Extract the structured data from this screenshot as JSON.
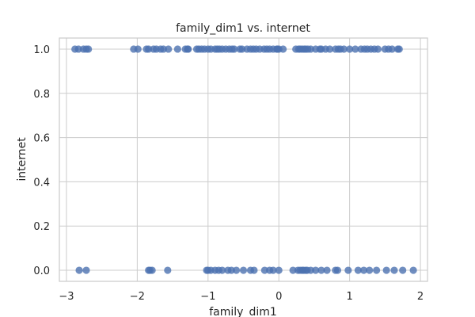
{
  "chart_data": {
    "type": "scatter",
    "title": "family_dim1 vs. internet",
    "xlabel": "family_dim1",
    "ylabel": "internet",
    "xlim": [
      -3.1,
      2.1
    ],
    "ylim": [
      -0.05,
      1.05
    ],
    "xticks": [
      -3,
      -2,
      -1,
      0,
      1,
      2
    ],
    "xtick_labels": [
      "−3",
      "−2",
      "−1",
      "0",
      "1",
      "2"
    ],
    "yticks": [
      0.0,
      0.2,
      0.4,
      0.6,
      0.8,
      1.0
    ],
    "ytick_labels": [
      "0.0",
      "0.2",
      "0.4",
      "0.6",
      "0.8",
      "1.0"
    ],
    "grid": true,
    "color": "#4c72b0",
    "series": [
      {
        "name": "points",
        "x": [
          -2.88,
          -2.83,
          -2.76,
          -2.72,
          -2.69,
          -2.05,
          -1.99,
          -1.87,
          -1.84,
          -1.77,
          -1.73,
          -1.67,
          -1.63,
          -1.56,
          -1.43,
          -1.32,
          -1.29,
          -1.28,
          -1.16,
          -1.13,
          -1.09,
          -1.05,
          -1.0,
          -0.96,
          -0.9,
          -0.87,
          -0.84,
          -0.8,
          -0.75,
          -0.7,
          -0.66,
          -0.63,
          -0.55,
          -0.52,
          -0.45,
          -0.4,
          -0.36,
          -0.32,
          -0.27,
          -0.21,
          -0.17,
          -0.13,
          -0.08,
          -0.03,
          -0.02,
          0.0,
          0.06,
          0.24,
          0.28,
          0.3,
          0.33,
          0.36,
          0.38,
          0.41,
          0.45,
          0.52,
          0.58,
          0.6,
          0.66,
          0.72,
          0.8,
          0.84,
          0.87,
          0.92,
          1.0,
          1.08,
          1.16,
          1.21,
          1.25,
          1.3,
          1.35,
          1.4,
          1.5,
          1.55,
          1.6,
          1.68,
          1.7,
          -2.82,
          -2.72,
          -1.84,
          -1.82,
          -1.79,
          -1.57,
          -1.02,
          -1.0,
          -0.96,
          -0.9,
          -0.85,
          -0.8,
          -0.72,
          -0.67,
          -0.6,
          -0.5,
          -0.4,
          -0.35,
          -0.2,
          -0.13,
          -0.08,
          0.0,
          0.2,
          0.27,
          0.3,
          0.33,
          0.35,
          0.38,
          0.4,
          0.45,
          0.52,
          0.6,
          0.68,
          0.8,
          0.83,
          0.98,
          1.12,
          1.2,
          1.28,
          1.38,
          1.52,
          1.63,
          1.75,
          1.9
        ],
        "y": [
          1,
          1,
          1,
          1,
          1,
          1,
          1,
          1,
          1,
          1,
          1,
          1,
          1,
          1,
          1,
          1,
          1,
          1,
          1,
          1,
          1,
          1,
          1,
          1,
          1,
          1,
          1,
          1,
          1,
          1,
          1,
          1,
          1,
          1,
          1,
          1,
          1,
          1,
          1,
          1,
          1,
          1,
          1,
          1,
          1,
          1,
          1,
          1,
          1,
          1,
          1,
          1,
          1,
          1,
          1,
          1,
          1,
          1,
          1,
          1,
          1,
          1,
          1,
          1,
          1,
          1,
          1,
          1,
          1,
          1,
          1,
          1,
          1,
          1,
          1,
          1,
          1,
          0,
          0,
          0,
          0,
          0,
          0,
          0,
          0,
          0,
          0,
          0,
          0,
          0,
          0,
          0,
          0,
          0,
          0,
          0,
          0,
          0,
          0,
          0,
          0,
          0,
          0,
          0,
          0,
          0,
          0,
          0,
          0,
          0,
          0,
          0,
          0,
          0,
          0,
          0,
          0,
          0,
          0,
          0,
          0
        ]
      }
    ]
  }
}
